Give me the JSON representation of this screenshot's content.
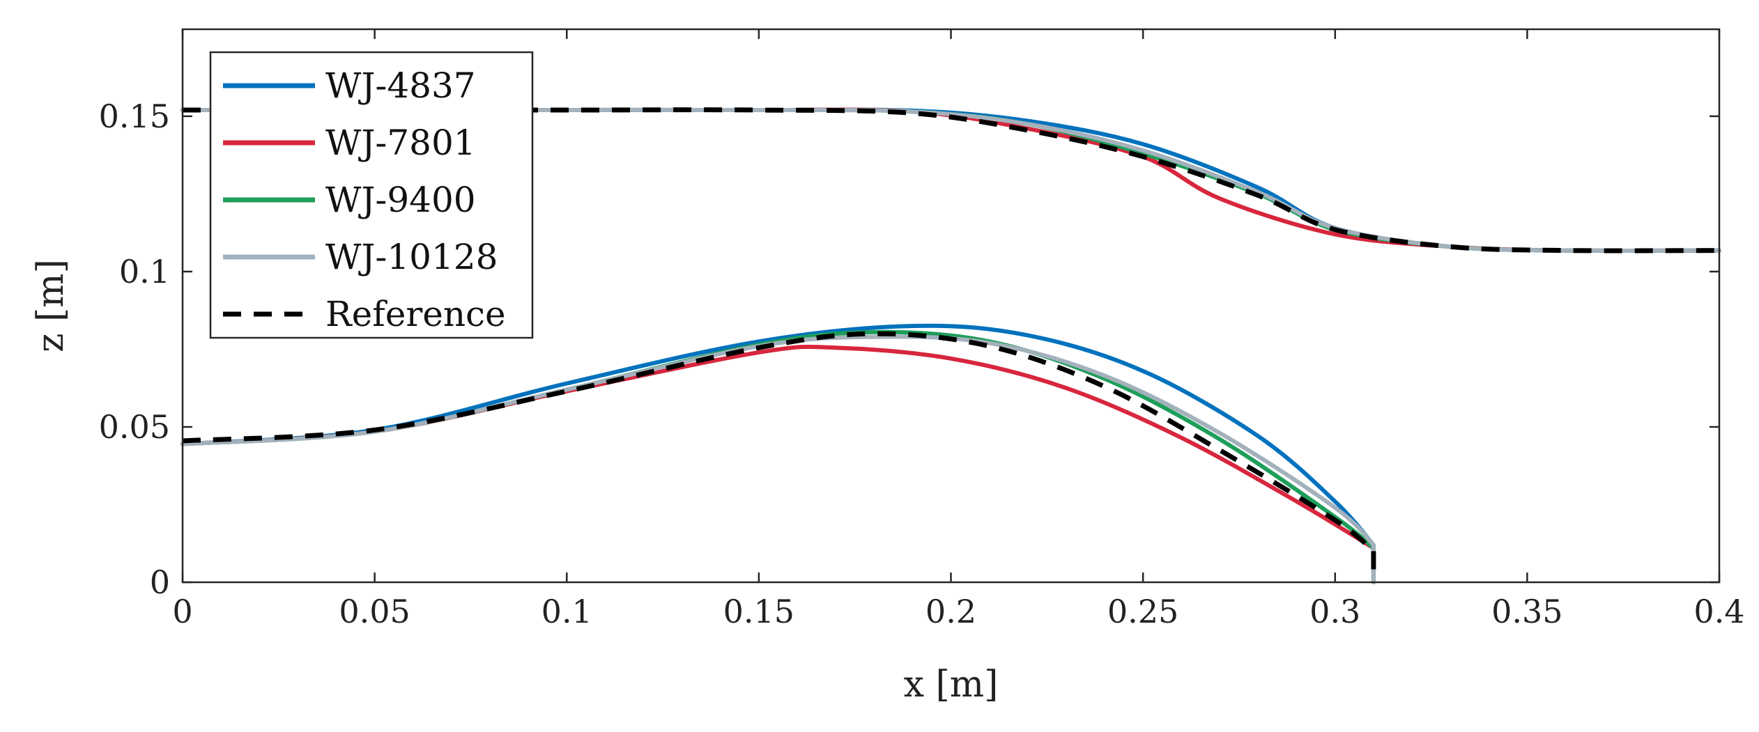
{
  "chart_data": {
    "type": "line",
    "title": "",
    "xlabel": "x [m]",
    "ylabel": "z [m]",
    "xlim": [
      0,
      0.4
    ],
    "ylim": [
      0,
      0.178
    ],
    "xticks": [
      0,
      0.05,
      0.1,
      0.15,
      0.2,
      0.25,
      0.3,
      0.35,
      0.4
    ],
    "xtick_labels": [
      "0",
      "0.05",
      "0.1",
      "0.15",
      "0.2",
      "0.25",
      "0.3",
      "0.35",
      "0.4"
    ],
    "yticks": [
      0,
      0.05,
      0.1,
      0.15
    ],
    "ytick_labels": [
      "0",
      "0.05",
      "0.1",
      "0.15"
    ],
    "grid": false,
    "legend_position": "top-left",
    "series": [
      {
        "name": "WJ-4837",
        "color": "#0072BD",
        "dash": "solid",
        "upper": {
          "x": [
            0,
            0.05,
            0.1,
            0.15,
            0.19,
            0.22,
            0.25,
            0.28,
            0.3,
            0.33,
            0.36,
            0.4
          ],
          "y": [
            0.152,
            0.152,
            0.152,
            0.152,
            0.1518,
            0.1485,
            0.141,
            0.127,
            0.114,
            0.108,
            0.1068,
            0.1068
          ]
        },
        "lower": {
          "x": [
            0,
            0.05,
            0.1,
            0.15,
            0.19,
            0.22,
            0.25,
            0.28,
            0.3,
            0.31
          ],
          "y": [
            0.0445,
            0.049,
            0.064,
            0.0775,
            0.0825,
            0.0795,
            0.068,
            0.047,
            0.026,
            0.012
          ]
        }
      },
      {
        "name": "WJ-7801",
        "color": "#D7263D",
        "dash": "solid",
        "upper": {
          "x": [
            0,
            0.05,
            0.1,
            0.15,
            0.19,
            0.22,
            0.25,
            0.27,
            0.3,
            0.33,
            0.36,
            0.4
          ],
          "y": [
            0.152,
            0.152,
            0.152,
            0.152,
            0.1515,
            0.146,
            0.137,
            0.1235,
            0.112,
            0.108,
            0.1068,
            0.1068
          ]
        },
        "lower": {
          "x": [
            0,
            0.05,
            0.1,
            0.15,
            0.17,
            0.2,
            0.23,
            0.26,
            0.29,
            0.31
          ],
          "y": [
            0.0445,
            0.0485,
            0.0615,
            0.074,
            0.0755,
            0.072,
            0.0625,
            0.0465,
            0.026,
            0.011
          ]
        }
      },
      {
        "name": "WJ-9400",
        "color": "#1E9E5A",
        "dash": "solid",
        "upper": {
          "x": [
            0,
            0.05,
            0.1,
            0.15,
            0.19,
            0.22,
            0.25,
            0.28,
            0.3,
            0.33,
            0.36,
            0.4
          ],
          "y": [
            0.152,
            0.152,
            0.152,
            0.152,
            0.1515,
            0.1475,
            0.138,
            0.125,
            0.1135,
            0.108,
            0.1068,
            0.1068
          ]
        },
        "lower": {
          "x": [
            0,
            0.05,
            0.1,
            0.15,
            0.18,
            0.21,
            0.24,
            0.27,
            0.3,
            0.31
          ],
          "y": [
            0.0445,
            0.0485,
            0.062,
            0.0765,
            0.0805,
            0.0775,
            0.0655,
            0.046,
            0.021,
            0.011
          ]
        }
      },
      {
        "name": "WJ-10128",
        "color": "#A3B1BC",
        "dash": "solid",
        "upper": {
          "x": [
            0,
            0.05,
            0.1,
            0.15,
            0.19,
            0.22,
            0.25,
            0.28,
            0.3,
            0.33,
            0.36,
            0.4
          ],
          "y": [
            0.152,
            0.152,
            0.152,
            0.152,
            0.1515,
            0.1475,
            0.139,
            0.1255,
            0.114,
            0.108,
            0.1068,
            0.1068
          ]
        },
        "lower": {
          "x": [
            0,
            0.05,
            0.1,
            0.15,
            0.18,
            0.21,
            0.24,
            0.27,
            0.3,
            0.31
          ],
          "y": [
            0.0445,
            0.0485,
            0.062,
            0.076,
            0.079,
            0.077,
            0.0665,
            0.048,
            0.024,
            0.012
          ]
        }
      },
      {
        "name": "Reference",
        "color": "#000000",
        "dash": "dashed",
        "upper": {
          "x": [
            0,
            0.05,
            0.1,
            0.15,
            0.19,
            0.22,
            0.25,
            0.28,
            0.3,
            0.33,
            0.36,
            0.4
          ],
          "y": [
            0.152,
            0.152,
            0.152,
            0.152,
            0.151,
            0.1455,
            0.137,
            0.1245,
            0.1135,
            0.108,
            0.1068,
            0.1068
          ]
        },
        "lower": {
          "x": [
            0,
            0.05,
            0.1,
            0.15,
            0.18,
            0.21,
            0.24,
            0.27,
            0.3,
            0.31
          ],
          "y": [
            0.0455,
            0.049,
            0.0615,
            0.0755,
            0.08,
            0.076,
            0.063,
            0.0425,
            0.02,
            0.01
          ]
        }
      }
    ]
  }
}
